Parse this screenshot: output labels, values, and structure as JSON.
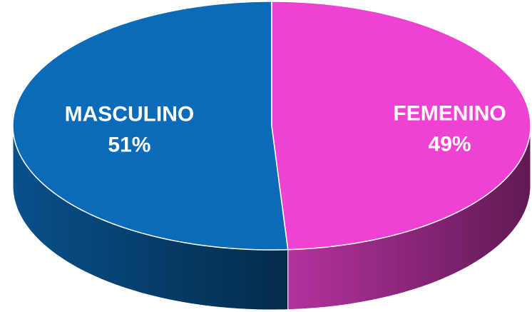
{
  "chart_data": {
    "type": "pie",
    "categories": [
      "MASCULINO",
      "FEMENINO"
    ],
    "values": [
      51,
      49
    ],
    "value_labels": [
      "51%",
      "49%"
    ],
    "colors": [
      "#0b6bb9",
      "#f042d2"
    ]
  }
}
